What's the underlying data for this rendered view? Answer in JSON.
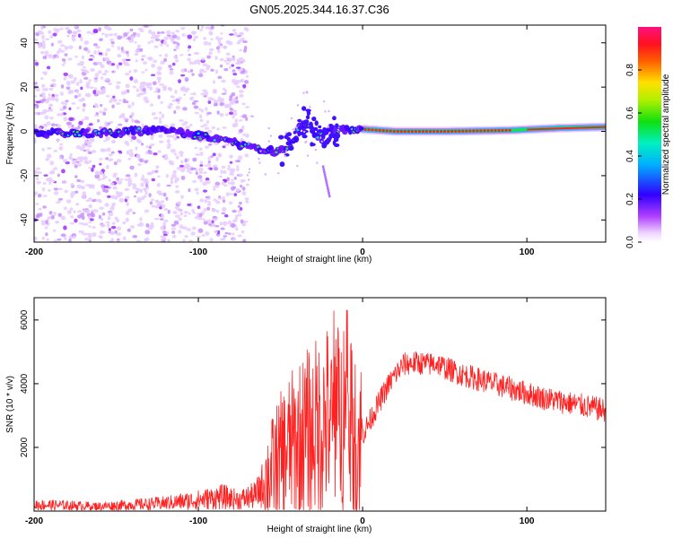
{
  "page": {
    "title": "GN05.2025.344.16.37.C36"
  },
  "colors": {
    "frame": "#000000",
    "snr_line": "#ff2020",
    "dot_min": "#e6ccff",
    "dot_mid": "#9b30ff",
    "dot_low": "#4400ff",
    "ridge_core": "#00e060"
  },
  "chart_data": [
    {
      "type": "heatmap",
      "title": "GN05.2025.344.16.37.C36",
      "xlabel": "Height of straight line (km)",
      "ylabel": "Frequency (Hz)",
      "xlim": [
        -200,
        148
      ],
      "ylim": [
        -50,
        48
      ],
      "xticks": [
        -200,
        -100,
        0,
        100
      ],
      "xtick_labels": [
        "-200",
        "-100",
        "0",
        "100"
      ],
      "yticks": [
        -40,
        -20,
        0,
        20,
        40
      ],
      "ytick_labels": [
        "-40",
        "-20",
        "0",
        "20",
        "40"
      ],
      "ridge": {
        "x": [
          -200,
          -180,
          -160,
          -140,
          -120,
          -100,
          -85,
          -75,
          -65,
          -55,
          -48,
          -42,
          -38,
          -35,
          -32,
          -30,
          -25,
          -20,
          -10,
          0,
          20,
          50,
          90,
          120,
          148
        ],
        "y": [
          -1,
          -1,
          -1,
          0,
          1,
          -2,
          -4,
          -6,
          -8,
          -9,
          -8,
          -5,
          2,
          4,
          2,
          -1,
          -2,
          0,
          1,
          1,
          0,
          0,
          0.5,
          1.5,
          2
        ]
      },
      "noise_region_x": [
        -200,
        -70
      ],
      "colorbar": {
        "label": "Normalized spectral amplitude",
        "range": [
          0,
          1
        ],
        "ticks": [
          0.0,
          0.2,
          0.4,
          0.6,
          0.8
        ],
        "tick_labels": [
          "0.0",
          "0.2",
          "0.4",
          "0.6",
          "0.8"
        ],
        "colormap": "rainbow"
      },
      "grid": false
    },
    {
      "type": "line",
      "xlabel": "Height of straight line (km)",
      "ylabel": "SNR (10 * v/v)",
      "xlim": [
        -200,
        148
      ],
      "ylim": [
        0,
        6700
      ],
      "xticks": [
        -200,
        -100,
        0,
        100
      ],
      "xtick_labels": [
        "-200",
        "-100",
        "0",
        "100"
      ],
      "yticks": [
        2000,
        4000,
        6000
      ],
      "ytick_labels": [
        "2000",
        "4000",
        "6000"
      ],
      "series": [
        {
          "envelope_x": [
            -200,
            -180,
            -160,
            -140,
            -120,
            -100,
            -85,
            -75,
            -65,
            -60,
            -55,
            -50,
            -45,
            -40,
            -35,
            -30,
            -25,
            -20,
            -15,
            -10,
            -5,
            0,
            5,
            10,
            15,
            20,
            25,
            30,
            35,
            40,
            45,
            50,
            60,
            70,
            80,
            90,
            100,
            110,
            120,
            130,
            140,
            148
          ],
          "envelope_y": [
            200,
            180,
            150,
            200,
            250,
            350,
            450,
            350,
            500,
            900,
            1300,
            1700,
            2000,
            2200,
            2400,
            2600,
            2700,
            3000,
            2900,
            2700,
            2300,
            2400,
            2900,
            3400,
            3900,
            4300,
            4600,
            4650,
            4650,
            4600,
            4650,
            4500,
            4300,
            4150,
            4000,
            3850,
            3700,
            3550,
            3450,
            3350,
            3250,
            3150
          ]
        }
      ],
      "grid": false
    }
  ]
}
